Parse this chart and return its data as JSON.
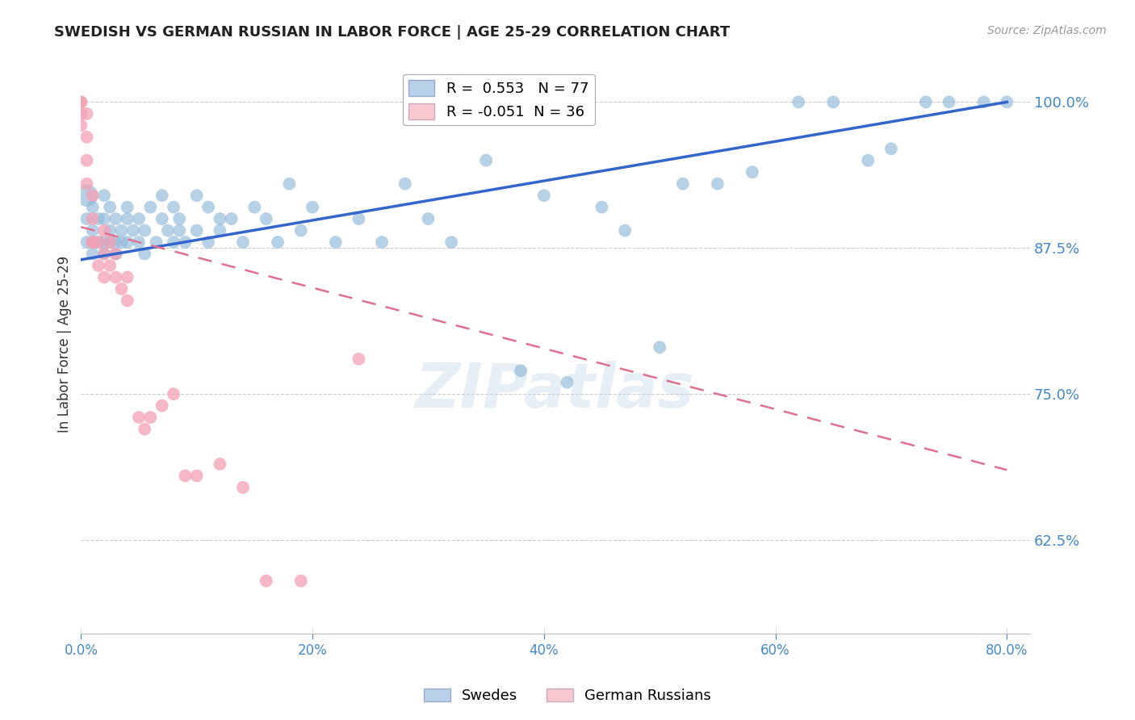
{
  "title": "SWEDISH VS GERMAN RUSSIAN IN LABOR FORCE | AGE 25-29 CORRELATION CHART",
  "source": "Source: ZipAtlas.com",
  "xlabel_ticks": [
    "0.0%",
    "",
    "",
    "",
    "",
    "20%",
    "",
    "",
    "",
    "",
    "40%",
    "",
    "",
    "",
    "",
    "60%",
    "",
    "",
    "",
    "",
    "80.0%"
  ],
  "xlabel_tick_vals": [
    0.0,
    0.04,
    0.08,
    0.12,
    0.16,
    0.2,
    0.24,
    0.28,
    0.32,
    0.36,
    0.4,
    0.44,
    0.48,
    0.52,
    0.56,
    0.6,
    0.64,
    0.68,
    0.72,
    0.76,
    0.8
  ],
  "xlabel_major_ticks": [
    "0.0%",
    "20%",
    "40%",
    "60%",
    "80.0%"
  ],
  "xlabel_major_tick_vals": [
    0.0,
    0.2,
    0.4,
    0.6,
    0.8
  ],
  "ylabel_ticks": [
    "62.5%",
    "75.0%",
    "87.5%",
    "100.0%"
  ],
  "ylabel_tick_vals": [
    0.625,
    0.75,
    0.875,
    1.0
  ],
  "xlim": [
    0.0,
    0.82
  ],
  "ylim": [
    0.545,
    1.04
  ],
  "swedes_R": 0.553,
  "swedes_N": 77,
  "german_russians_R": -0.051,
  "german_russians_N": 36,
  "swede_color": "#90b8d8",
  "german_russian_color": "#f4a0b5",
  "swede_line_color": "#3366cc",
  "german_russian_line_color": "#e07090",
  "background_color": "#ffffff",
  "grid_color": "#cccccc",
  "title_color": "#222222",
  "axis_label_color": "#333333",
  "tick_label_color": "#4488cc",
  "source_color": "#999999",
  "watermark": "ZIPatlas",
  "legend_box_color_swede": "#b8d0e8",
  "legend_box_color_german": "#f8c8d0",
  "swedes_x": [
    0.005,
    0.005,
    0.005,
    0.01,
    0.01,
    0.01,
    0.01,
    0.015,
    0.015,
    0.02,
    0.02,
    0.02,
    0.02,
    0.025,
    0.025,
    0.025,
    0.03,
    0.03,
    0.03,
    0.035,
    0.035,
    0.04,
    0.04,
    0.04,
    0.045,
    0.05,
    0.05,
    0.055,
    0.055,
    0.06,
    0.065,
    0.07,
    0.07,
    0.075,
    0.08,
    0.08,
    0.085,
    0.085,
    0.09,
    0.1,
    0.1,
    0.11,
    0.11,
    0.12,
    0.12,
    0.13,
    0.14,
    0.15,
    0.16,
    0.17,
    0.18,
    0.19,
    0.2,
    0.22,
    0.24,
    0.26,
    0.28,
    0.3,
    0.32,
    0.35,
    0.38,
    0.4,
    0.42,
    0.45,
    0.47,
    0.5,
    0.52,
    0.55,
    0.58,
    0.62,
    0.65,
    0.68,
    0.7,
    0.73,
    0.75,
    0.78,
    0.8
  ],
  "swedes_y": [
    0.92,
    0.9,
    0.88,
    0.91,
    0.89,
    0.88,
    0.87,
    0.9,
    0.88,
    0.92,
    0.9,
    0.88,
    0.87,
    0.91,
    0.89,
    0.88,
    0.9,
    0.88,
    0.87,
    0.89,
    0.88,
    0.91,
    0.9,
    0.88,
    0.89,
    0.88,
    0.9,
    0.89,
    0.87,
    0.91,
    0.88,
    0.92,
    0.9,
    0.89,
    0.91,
    0.88,
    0.9,
    0.89,
    0.88,
    0.92,
    0.89,
    0.91,
    0.88,
    0.9,
    0.89,
    0.9,
    0.88,
    0.91,
    0.9,
    0.88,
    0.93,
    0.89,
    0.91,
    0.88,
    0.9,
    0.88,
    0.93,
    0.9,
    0.88,
    0.95,
    0.77,
    0.92,
    0.76,
    0.91,
    0.89,
    0.79,
    0.93,
    0.93,
    0.94,
    1.0,
    1.0,
    0.95,
    0.96,
    1.0,
    1.0,
    1.0,
    1.0
  ],
  "german_russians_x": [
    0.0,
    0.0,
    0.0,
    0.0,
    0.005,
    0.005,
    0.005,
    0.005,
    0.01,
    0.01,
    0.01,
    0.01,
    0.015,
    0.015,
    0.02,
    0.02,
    0.02,
    0.025,
    0.025,
    0.03,
    0.03,
    0.035,
    0.04,
    0.04,
    0.05,
    0.055,
    0.06,
    0.07,
    0.08,
    0.09,
    0.1,
    0.12,
    0.14,
    0.16,
    0.19,
    0.24
  ],
  "german_russians_y": [
    1.0,
    1.0,
    0.99,
    0.98,
    0.99,
    0.97,
    0.95,
    0.93,
    0.92,
    0.9,
    0.88,
    0.88,
    0.88,
    0.86,
    0.89,
    0.87,
    0.85,
    0.88,
    0.86,
    0.87,
    0.85,
    0.84,
    0.83,
    0.85,
    0.73,
    0.72,
    0.73,
    0.74,
    0.75,
    0.68,
    0.68,
    0.69,
    0.67,
    0.59,
    0.59,
    0.78
  ],
  "swede_trendline_x0": 0.0,
  "swede_trendline_y0": 0.865,
  "swede_trendline_x1": 0.8,
  "swede_trendline_y1": 1.0,
  "german_trendline_x0": 0.0,
  "german_trendline_y0": 0.893,
  "german_trendline_x1": 0.8,
  "german_trendline_y1": 0.685
}
